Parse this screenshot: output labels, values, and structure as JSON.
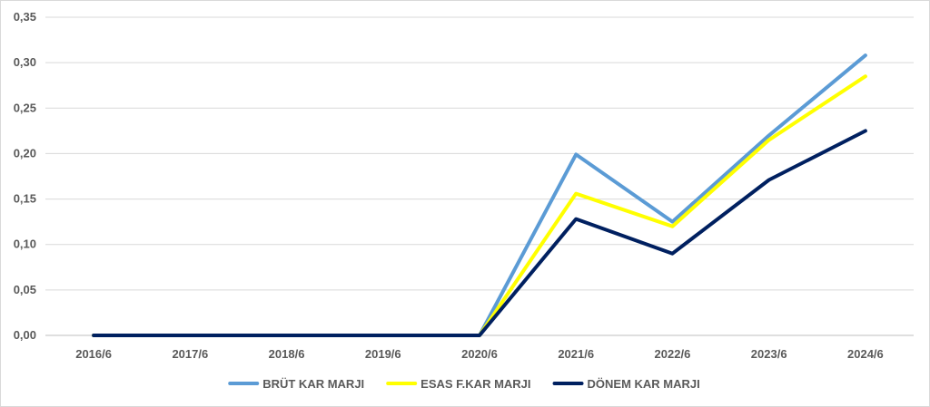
{
  "chart_data": {
    "type": "line",
    "categories": [
      "2016/6",
      "2017/6",
      "2018/6",
      "2019/6",
      "2020/6",
      "2021/6",
      "2022/6",
      "2023/6",
      "2024/6"
    ],
    "series": [
      {
        "name": "BRÜT KAR MARJI",
        "color": "#5b9bd5",
        "values": [
          0,
          0,
          0,
          0,
          0,
          0.199,
          0.125,
          0.22,
          0.308
        ]
      },
      {
        "name": "ESAS F.KAR MARJI",
        "color": "#ffff00",
        "values": [
          0,
          0,
          0,
          0,
          0,
          0.156,
          0.12,
          0.215,
          0.285
        ]
      },
      {
        "name": "DÖNEM KAR MARJI",
        "color": "#002060",
        "values": [
          0,
          0,
          0,
          0,
          0,
          0.128,
          0.09,
          0.171,
          0.225
        ]
      }
    ],
    "yticks": [
      "0,00",
      "0,05",
      "0,10",
      "0,15",
      "0,20",
      "0,25",
      "0,30",
      "0,35"
    ],
    "ylim": [
      0,
      0.35
    ],
    "grid": true,
    "legend_position": "bottom",
    "title": "",
    "xlabel": "",
    "ylabel": ""
  }
}
